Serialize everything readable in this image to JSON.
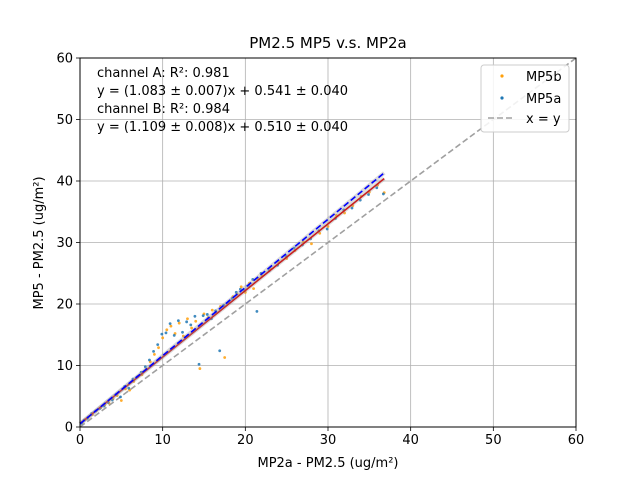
{
  "chart_data": {
    "type": "scatter",
    "title": "PM2.5 MP5 v.s. MP2a",
    "xlabel": "MP2a - PM2.5 (ug/m²)",
    "ylabel": "MP5 - PM2.5 (ug/m²)",
    "xlim": [
      0,
      60
    ],
    "ylim": [
      0,
      60
    ],
    "xticks": [
      "0",
      "10",
      "20",
      "30",
      "40",
      "50",
      "60"
    ],
    "yticks": [
      "0",
      "10",
      "20",
      "30",
      "40",
      "50",
      "60"
    ],
    "grid": true,
    "legend_position": "top-right",
    "colors": {
      "mp5b": "#ff9f0a",
      "mp5a": "#1f77b4",
      "fit_a": "#c81e1e",
      "fit_b": "#0000ff",
      "identity": "#a0a0a0"
    },
    "annotations": [
      "channel A: R²: 0.981",
      "y = (1.083 ± 0.007)x + 0.541 ± 0.040",
      "channel B: R²: 0.984",
      "y = (1.109 ± 0.008)x + 0.510 ± 0.040"
    ],
    "legend": [
      {
        "label": "MP5b",
        "kind": "marker",
        "color": "#ff9f0a"
      },
      {
        "label": "MP5a",
        "kind": "marker",
        "color": "#1f77b4"
      },
      {
        "label": "x = y",
        "kind": "dashed-line",
        "color": "#a0a0a0"
      }
    ],
    "fits": [
      {
        "series": "channel A",
        "slope": 1.083,
        "intercept": 0.541,
        "x_range": [
          0,
          36.8
        ],
        "color": "#c81e1e"
      },
      {
        "series": "channel B",
        "slope": 1.109,
        "intercept": 0.51,
        "x_range": [
          0,
          36.8
        ],
        "color": "#0000ff"
      }
    ],
    "identity_line": {
      "x_range": [
        0,
        60
      ]
    },
    "series": [
      {
        "name": "MP5b",
        "color": "#ff9f0a",
        "points": [
          [
            0.3,
            0.8
          ],
          [
            0.6,
            1.2
          ],
          [
            1.0,
            1.6
          ],
          [
            1.5,
            2.0
          ],
          [
            2.0,
            2.7
          ],
          [
            2.5,
            3.1
          ],
          [
            3.0,
            3.6
          ],
          [
            3.5,
            3.9
          ],
          [
            4.0,
            4.6
          ],
          [
            4.5,
            5.1
          ],
          [
            5.0,
            4.3
          ],
          [
            5.5,
            6.2
          ],
          [
            6.0,
            6.0
          ],
          [
            6.5,
            7.4
          ],
          [
            7.0,
            8.2
          ],
          [
            7.5,
            8.5
          ],
          [
            8.0,
            9.4
          ],
          [
            8.5,
            10.6
          ],
          [
            9.0,
            11.8
          ],
          [
            9.5,
            12.9
          ],
          [
            10.0,
            14.5
          ],
          [
            10.5,
            15.8
          ],
          [
            11.0,
            16.4
          ],
          [
            11.5,
            15.2
          ],
          [
            12.0,
            16.9
          ],
          [
            12.5,
            14.8
          ],
          [
            13.0,
            17.6
          ],
          [
            13.5,
            16.1
          ],
          [
            14.0,
            17.2
          ],
          [
            14.5,
            9.5
          ],
          [
            15.0,
            18.4
          ],
          [
            15.5,
            17.8
          ],
          [
            16.0,
            19.0
          ],
          [
            16.5,
            18.6
          ],
          [
            17.0,
            19.6
          ],
          [
            17.5,
            11.3
          ],
          [
            18.0,
            20.4
          ],
          [
            18.5,
            21.2
          ],
          [
            19.0,
            21.6
          ],
          [
            19.5,
            22.8
          ],
          [
            20.0,
            21.9
          ],
          [
            20.5,
            23.4
          ],
          [
            21.0,
            22.5
          ],
          [
            21.5,
            24.1
          ],
          [
            22.0,
            24.6
          ],
          [
            23.0,
            25.8
          ],
          [
            24.0,
            26.9
          ],
          [
            25.0,
            27.4
          ],
          [
            26.0,
            28.7
          ],
          [
            27.0,
            30.1
          ],
          [
            28.0,
            29.8
          ],
          [
            29.0,
            31.5
          ],
          [
            30.0,
            32.6
          ],
          [
            31.0,
            34.4
          ],
          [
            32.0,
            34.8
          ],
          [
            33.0,
            36.0
          ],
          [
            34.0,
            37.5
          ],
          [
            35.0,
            38.2
          ],
          [
            36.0,
            39.3
          ],
          [
            36.8,
            38.1
          ]
        ]
      },
      {
        "name": "MP5a",
        "color": "#1f77b4",
        "points": [
          [
            0.2,
            0.6
          ],
          [
            0.5,
            1.1
          ],
          [
            0.9,
            1.4
          ],
          [
            1.4,
            2.2
          ],
          [
            1.9,
            2.6
          ],
          [
            2.4,
            3.0
          ],
          [
            2.9,
            3.4
          ],
          [
            3.4,
            4.0
          ],
          [
            3.9,
            4.4
          ],
          [
            4.4,
            5.3
          ],
          [
            4.9,
            4.9
          ],
          [
            5.4,
            6.6
          ],
          [
            5.9,
            6.3
          ],
          [
            6.4,
            7.8
          ],
          [
            6.9,
            8.1
          ],
          [
            7.4,
            8.9
          ],
          [
            7.9,
            9.8
          ],
          [
            8.4,
            10.9
          ],
          [
            8.9,
            12.3
          ],
          [
            9.4,
            13.4
          ],
          [
            9.9,
            15.1
          ],
          [
            10.4,
            15.3
          ],
          [
            10.9,
            16.8
          ],
          [
            11.4,
            14.9
          ],
          [
            11.9,
            17.3
          ],
          [
            12.4,
            15.4
          ],
          [
            12.9,
            17.1
          ],
          [
            13.4,
            16.6
          ],
          [
            13.9,
            18.0
          ],
          [
            14.4,
            10.2
          ],
          [
            14.9,
            18.1
          ],
          [
            15.4,
            18.3
          ],
          [
            15.9,
            17.6
          ],
          [
            16.4,
            18.9
          ],
          [
            16.9,
            12.4
          ],
          [
            17.4,
            19.8
          ],
          [
            17.9,
            20.2
          ],
          [
            18.4,
            20.9
          ],
          [
            18.9,
            21.9
          ],
          [
            19.4,
            22.4
          ],
          [
            19.9,
            22.2
          ],
          [
            20.4,
            23.0
          ],
          [
            20.9,
            24.0
          ],
          [
            21.4,
            18.8
          ],
          [
            21.9,
            25.0
          ],
          [
            22.9,
            25.4
          ],
          [
            23.9,
            26.3
          ],
          [
            24.9,
            27.8
          ],
          [
            25.9,
            29.1
          ],
          [
            26.9,
            29.6
          ],
          [
            27.9,
            30.6
          ],
          [
            28.9,
            31.9
          ],
          [
            29.9,
            32.2
          ],
          [
            30.9,
            33.9
          ],
          [
            31.9,
            35.3
          ],
          [
            32.9,
            35.6
          ],
          [
            33.9,
            36.9
          ],
          [
            34.9,
            37.8
          ],
          [
            35.9,
            38.9
          ],
          [
            36.7,
            37.9
          ]
        ]
      }
    ]
  }
}
